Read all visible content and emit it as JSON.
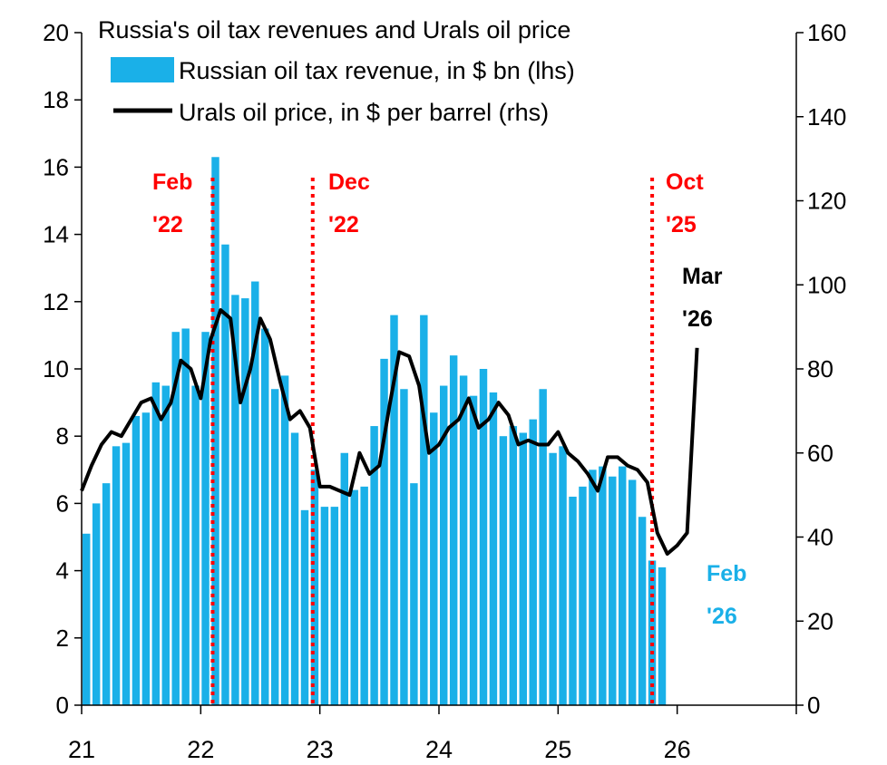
{
  "chart_data": {
    "type": "bar+line",
    "title": "Russia's oil tax revenues and Urals oil price",
    "legend_placement": "top-left",
    "grid": false,
    "x_axis": {
      "min": 21,
      "max": 27,
      "ticks": [
        "21",
        "22",
        "23",
        "24",
        "25",
        "26"
      ]
    },
    "y_left": {
      "min": 0,
      "max": 20,
      "ticks": [
        "0",
        "2",
        "4",
        "6",
        "8",
        "10",
        "12",
        "14",
        "16",
        "18",
        "20"
      ]
    },
    "y_right": {
      "min": 0,
      "max": 160,
      "ticks": [
        "0",
        "20",
        "40",
        "60",
        "80",
        "100",
        "120",
        "140",
        "160"
      ]
    },
    "series": [
      {
        "name": "Russian oil tax revenue, in $ bn (lhs)",
        "type": "bar",
        "axis": "left",
        "color": "#1ab0e8",
        "values": [
          5.1,
          6.0,
          6.6,
          7.7,
          7.8,
          8.6,
          8.7,
          9.6,
          9.5,
          11.1,
          11.2,
          9.5,
          11.1,
          16.3,
          13.7,
          12.2,
          12.1,
          12.6,
          11.2,
          9.4,
          9.8,
          8.1,
          5.8,
          7.0,
          5.9,
          5.9,
          7.5,
          6.4,
          6.5,
          8.3,
          10.3,
          11.6,
          9.4,
          6.6,
          11.6,
          8.7,
          9.5,
          10.4,
          9.8,
          9.2,
          10.0,
          9.3,
          8.0,
          8.3,
          8.1,
          8.5,
          9.4,
          7.5,
          7.7,
          6.2,
          6.5,
          7.0,
          7.1,
          6.8,
          7.1,
          6.7,
          5.6,
          4.3,
          4.1
        ]
      },
      {
        "name": "Urals oil price, in $ per barrel (rhs)",
        "type": "line",
        "axis": "right",
        "color": "#000000",
        "values": [
          51,
          57,
          62,
          65,
          64,
          68,
          72,
          73,
          68,
          72,
          82,
          80,
          73,
          87,
          94,
          92,
          72,
          80,
          92,
          87,
          77,
          68,
          70,
          66,
          52,
          52,
          51,
          50,
          60,
          55,
          57,
          71,
          84,
          83,
          76,
          60,
          62,
          66,
          68,
          73,
          66,
          68,
          72,
          69,
          62,
          63,
          62,
          62,
          65,
          60,
          58,
          55,
          51,
          59,
          59,
          57,
          56,
          53,
          41,
          36,
          38,
          41,
          85
        ]
      }
    ],
    "annotations": [
      {
        "label_line1": "Feb",
        "label_line2": "'22",
        "x": 22.1,
        "color": "#ff0000"
      },
      {
        "label_line1": "Dec",
        "label_line2": "'22",
        "x": 22.94,
        "color": "#ff0000"
      },
      {
        "label_line1": "Oct",
        "label_line2": "'25",
        "x": 25.79,
        "color": "#ff0000"
      }
    ],
    "point_labels": [
      {
        "line1": "Mar",
        "line2": "'26",
        "color": "#000000"
      },
      {
        "line1": "Feb",
        "line2": "'26",
        "color": "#1ab0e8"
      }
    ]
  }
}
